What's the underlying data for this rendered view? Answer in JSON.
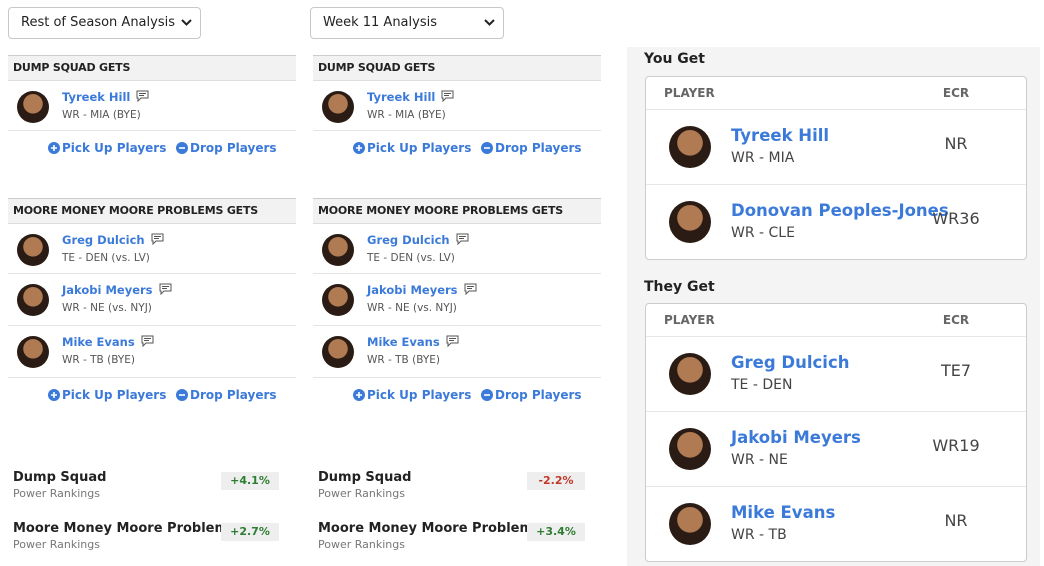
{
  "columns": [
    {
      "select": "Rest of Season Analysis",
      "teams": [
        {
          "header": "DUMP SQUAD GETS",
          "players": [
            {
              "name": "Tyreek Hill",
              "info": "WR - MIA (BYE)"
            }
          ],
          "pickup": "Pick Up Players",
          "drop": "Drop Players"
        },
        {
          "header": "MOORE MONEY MOORE PROBLEMS GETS",
          "players": [
            {
              "name": "Greg Dulcich",
              "info": "TE - DEN (vs. LV)"
            },
            {
              "name": "Jakobi Meyers",
              "info": "WR - NE (vs. NYJ)"
            },
            {
              "name": "Mike Evans",
              "info": "WR - TB (BYE)"
            }
          ],
          "pickup": "Pick Up Players",
          "drop": "Drop Players"
        }
      ],
      "rankings": [
        {
          "team": "Dump Squad",
          "sub": "Power Rankings",
          "change": "+4.1%"
        },
        {
          "team": "Moore Money Moore Problems",
          "sub": "Power Rankings",
          "change": "+2.7%"
        }
      ]
    },
    {
      "select": "Week 11 Analysis",
      "teams": [
        {
          "header": "DUMP SQUAD GETS",
          "players": [
            {
              "name": "Tyreek Hill",
              "info": "WR - MIA (BYE)"
            }
          ],
          "pickup": "Pick Up Players",
          "drop": "Drop Players"
        },
        {
          "header": "MOORE MONEY MOORE PROBLEMS GETS",
          "players": [
            {
              "name": "Greg Dulcich",
              "info": "TE - DEN (vs. LV)"
            },
            {
              "name": "Jakobi Meyers",
              "info": "WR - NE (vs. NYJ)"
            },
            {
              "name": "Mike Evans",
              "info": "WR - TB (BYE)"
            }
          ],
          "pickup": "Pick Up Players",
          "drop": "Drop Players"
        }
      ],
      "rankings": [
        {
          "team": "Dump Squad",
          "sub": "Power Rankings",
          "change": "-2.2%"
        },
        {
          "team": "Moore Money Moore Problems",
          "sub": "Power Rankings",
          "change": "+3.4%"
        }
      ]
    }
  ],
  "summary": [
    {
      "title": "You Get",
      "col_player": "PLAYER",
      "col_ecr": "ECR",
      "players": [
        {
          "name": "Tyreek Hill",
          "info": "WR - MIA",
          "ecr": "NR"
        },
        {
          "name": "Donovan Peoples-Jones",
          "info": "WR - CLE",
          "ecr": "WR36"
        }
      ]
    },
    {
      "title": "They Get",
      "col_player": "PLAYER",
      "col_ecr": "ECR",
      "players": [
        {
          "name": "Greg Dulcich",
          "info": "TE - DEN",
          "ecr": "TE7"
        },
        {
          "name": "Jakobi Meyers",
          "info": "WR - NE",
          "ecr": "WR19"
        },
        {
          "name": "Mike Evans",
          "info": "WR - TB",
          "ecr": "NR"
        }
      ]
    }
  ]
}
